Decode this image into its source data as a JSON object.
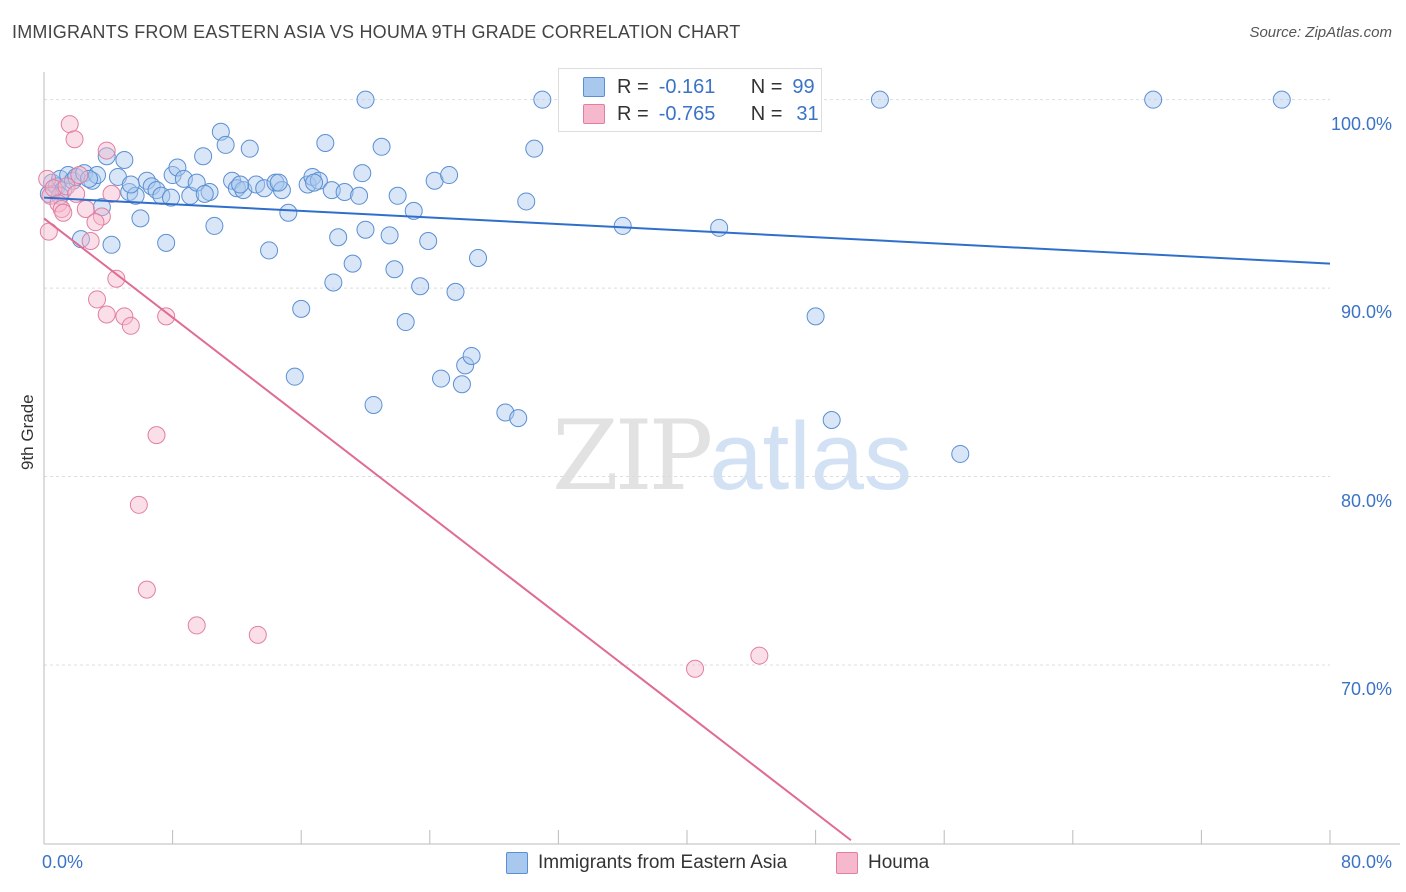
{
  "header": {
    "title": "IMMIGRANTS FROM EASTERN ASIA VS HOUMA 9TH GRADE CORRELATION CHART",
    "source": "Source: ZipAtlas.com"
  },
  "watermark": {
    "zip": "ZIP",
    "atlas": "atlas"
  },
  "legend_top": {
    "rows": [
      {
        "r_label": "R =",
        "r_value": "-0.161",
        "n_label": "N =",
        "n_value": "99"
      },
      {
        "r_label": "R =",
        "r_value": "-0.765",
        "n_label": "N =",
        "n_value": "31"
      }
    ]
  },
  "legend_bottom": {
    "items": [
      {
        "label": "Immigrants from Eastern Asia"
      },
      {
        "label": "Houma"
      }
    ]
  },
  "colors": {
    "blue_fill": "#a9c8ee",
    "blue_stroke": "#5b8fd4",
    "blue_line": "#2f6fcc",
    "pink_fill": "#f6b8cc",
    "pink_stroke": "#e27fa0",
    "pink_line": "#e06b95",
    "grid": "#dddddd",
    "axis_label": "#3b73c6"
  },
  "chart_data": {
    "type": "scatter",
    "title": "IMMIGRANTS FROM EASTERN ASIA VS HOUMA 9TH GRADE CORRELATION CHART",
    "xlabel": "",
    "ylabel": "9th Grade",
    "xlim": [
      0,
      80
    ],
    "ylim": [
      60.5,
      102
    ],
    "x_tick_labels": [
      "0.0%",
      "80.0%"
    ],
    "y_tick_labels": [
      "100.0%",
      "90.0%",
      "80.0%",
      "70.0%"
    ],
    "y_tick_values": [
      100,
      90,
      80,
      70
    ],
    "grid": true,
    "legend_position": "top-center",
    "series": [
      {
        "name": "Immigrants from Eastern Asia",
        "r": -0.161,
        "n": 99,
        "trend": {
          "x0": 0,
          "y0": 94.8,
          "x1": 80,
          "y1": 91.3
        },
        "points": [
          [
            0.3,
            95.0
          ],
          [
            0.5,
            95.6
          ],
          [
            0.8,
            95.4
          ],
          [
            1.0,
            95.8
          ],
          [
            1.2,
            95.2
          ],
          [
            1.5,
            96.0
          ],
          [
            1.8,
            95.7
          ],
          [
            2.0,
            95.9
          ],
          [
            2.3,
            92.6
          ],
          [
            2.5,
            96.1
          ],
          [
            3.0,
            95.7
          ],
          [
            3.3,
            96.0
          ],
          [
            3.6,
            94.3
          ],
          [
            3.9,
            97.0
          ],
          [
            4.2,
            92.3
          ],
          [
            4.6,
            95.9
          ],
          [
            5.0,
            96.8
          ],
          [
            5.3,
            95.1
          ],
          [
            5.7,
            94.9
          ],
          [
            6.0,
            93.7
          ],
          [
            6.4,
            95.7
          ],
          [
            6.7,
            95.4
          ],
          [
            7.0,
            95.2
          ],
          [
            7.3,
            94.9
          ],
          [
            7.6,
            92.4
          ],
          [
            8.0,
            96.0
          ],
          [
            8.3,
            96.4
          ],
          [
            8.7,
            95.8
          ],
          [
            9.1,
            94.9
          ],
          [
            9.5,
            95.6
          ],
          [
            9.9,
            97.0
          ],
          [
            10.3,
            95.1
          ],
          [
            10.6,
            93.3
          ],
          [
            11.0,
            98.3
          ],
          [
            11.3,
            97.6
          ],
          [
            11.7,
            95.7
          ],
          [
            12.0,
            95.3
          ],
          [
            12.4,
            95.2
          ],
          [
            12.8,
            97.4
          ],
          [
            13.2,
            95.5
          ],
          [
            13.7,
            95.3
          ],
          [
            14.0,
            92.0
          ],
          [
            14.4,
            95.6
          ],
          [
            14.8,
            95.2
          ],
          [
            15.2,
            94.0
          ],
          [
            15.6,
            85.3
          ],
          [
            16.0,
            88.9
          ],
          [
            16.4,
            95.5
          ],
          [
            16.7,
            95.9
          ],
          [
            17.1,
            95.7
          ],
          [
            17.5,
            97.7
          ],
          [
            17.9,
            95.2
          ],
          [
            18.3,
            92.7
          ],
          [
            18.7,
            95.1
          ],
          [
            19.2,
            91.3
          ],
          [
            19.6,
            94.9
          ],
          [
            20.0,
            93.1
          ],
          [
            20.5,
            83.8
          ],
          [
            21.0,
            97.5
          ],
          [
            21.5,
            92.8
          ],
          [
            22.0,
            94.9
          ],
          [
            22.5,
            88.2
          ],
          [
            23.0,
            94.1
          ],
          [
            23.4,
            90.1
          ],
          [
            23.9,
            92.5
          ],
          [
            24.3,
            95.7
          ],
          [
            24.7,
            85.2
          ],
          [
            25.2,
            96.0
          ],
          [
            25.6,
            89.8
          ],
          [
            26.2,
            85.9
          ],
          [
            26.6,
            86.4
          ],
          [
            27.0,
            91.6
          ],
          [
            28.7,
            83.4
          ],
          [
            30.0,
            94.6
          ],
          [
            30.5,
            97.4
          ],
          [
            31.0,
            100.0
          ],
          [
            33.0,
            100.0
          ],
          [
            36.0,
            93.3
          ],
          [
            42.0,
            93.2
          ],
          [
            48.0,
            88.5
          ],
          [
            49.0,
            83.0
          ],
          [
            52.0,
            100.0
          ],
          [
            57.0,
            81.2
          ],
          [
            69.0,
            100.0
          ],
          [
            77.0,
            100.0
          ],
          [
            1.0,
            94.9
          ],
          [
            2.8,
            95.8
          ],
          [
            5.4,
            95.5
          ],
          [
            7.9,
            94.8
          ],
          [
            10.0,
            95.0
          ],
          [
            12.2,
            95.5
          ],
          [
            14.6,
            95.6
          ],
          [
            16.8,
            95.6
          ],
          [
            18.0,
            90.3
          ],
          [
            21.8,
            91.0
          ],
          [
            19.8,
            96.1
          ],
          [
            26.0,
            84.9
          ],
          [
            29.5,
            83.1
          ],
          [
            20.0,
            100.0
          ]
        ]
      },
      {
        "name": "Houma",
        "r": -0.765,
        "n": 31,
        "trend": {
          "x0": 0,
          "y0": 93.7,
          "x1": 50.2,
          "y1": 60.7
        },
        "points": [
          [
            0.2,
            95.8
          ],
          [
            0.4,
            94.9
          ],
          [
            0.6,
            95.3
          ],
          [
            0.9,
            94.5
          ],
          [
            1.1,
            94.2
          ],
          [
            1.4,
            95.4
          ],
          [
            1.6,
            98.7
          ],
          [
            1.9,
            97.9
          ],
          [
            2.2,
            96.0
          ],
          [
            2.6,
            94.2
          ],
          [
            2.9,
            92.5
          ],
          [
            3.3,
            89.4
          ],
          [
            3.6,
            93.8
          ],
          [
            3.9,
            97.3
          ],
          [
            4.2,
            95.0
          ],
          [
            4.5,
            90.5
          ],
          [
            5.0,
            88.5
          ],
          [
            5.4,
            88.0
          ],
          [
            5.9,
            78.5
          ],
          [
            6.4,
            74.0
          ],
          [
            7.0,
            82.2
          ],
          [
            7.6,
            88.5
          ],
          [
            9.5,
            72.1
          ],
          [
            13.3,
            71.6
          ],
          [
            40.5,
            69.8
          ],
          [
            44.5,
            70.5
          ],
          [
            0.3,
            93.0
          ],
          [
            1.2,
            94.0
          ],
          [
            2.0,
            95.0
          ],
          [
            3.2,
            93.5
          ],
          [
            3.9,
            88.6
          ]
        ]
      }
    ]
  }
}
